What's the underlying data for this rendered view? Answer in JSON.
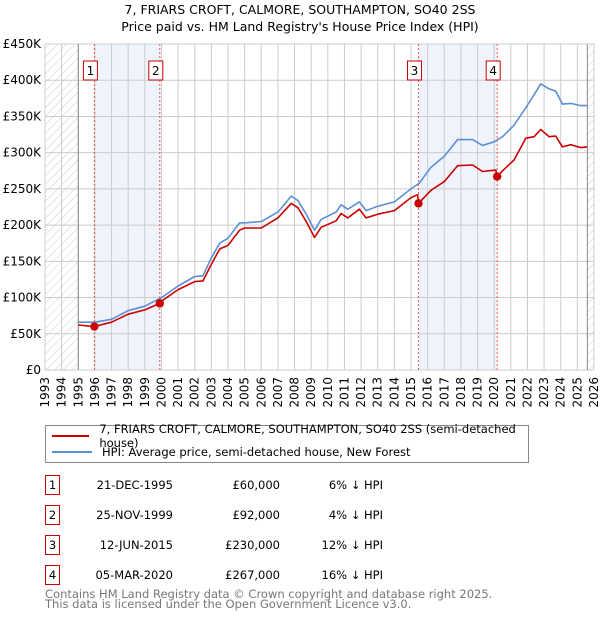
{
  "chart_data": {
    "type": "line",
    "title": "7, FRIARS CROFT, CALMORE, SOUTHAMPTON, SO40 2SS",
    "subtitle": "Price paid vs. HM Land Registry's House Price Index (HPI)",
    "xlim": [
      1993,
      2026
    ],
    "ylim": [
      0,
      450000
    ],
    "x_ticks": [
      "1993",
      "1994",
      "1995",
      "1996",
      "1997",
      "1998",
      "1999",
      "2000",
      "2001",
      "2002",
      "2003",
      "2004",
      "2005",
      "2006",
      "2007",
      "2008",
      "2009",
      "2010",
      "2011",
      "2012",
      "2013",
      "2014",
      "2015",
      "2016",
      "2017",
      "2018",
      "2019",
      "2020",
      "2021",
      "2022",
      "2023",
      "2024",
      "2025",
      "2026"
    ],
    "y_ticks": [
      {
        "value": 0,
        "label": "£0"
      },
      {
        "value": 50000,
        "label": "£50K"
      },
      {
        "value": 100000,
        "label": "£100K"
      },
      {
        "value": 150000,
        "label": "£150K"
      },
      {
        "value": 200000,
        "label": "£200K"
      },
      {
        "value": 250000,
        "label": "£250K"
      },
      {
        "value": 300000,
        "label": "£300K"
      },
      {
        "value": 350000,
        "label": "£350K"
      },
      {
        "value": 400000,
        "label": "£400K"
      },
      {
        "value": 450000,
        "label": "£450K"
      }
    ],
    "grid": true,
    "data_range": [
      1995,
      2025.6
    ],
    "colors": {
      "property": "#cc0000",
      "hpi": "#5b8fd4",
      "band": "#eef3fc",
      "grid": "#cccccc"
    },
    "series": [
      {
        "name": "7, FRIARS CROFT, CALMORE, SOUTHAMPTON, SO40 2SS (semi-detached house)",
        "color": "#cc0000",
        "points": [
          [
            1995,
            62000
          ],
          [
            1995.97,
            60000
          ],
          [
            1997,
            66000
          ],
          [
            1998,
            77000
          ],
          [
            1999,
            83000
          ],
          [
            1999.9,
            92000
          ],
          [
            2000,
            95000
          ],
          [
            2001,
            111000
          ],
          [
            2002,
            122000
          ],
          [
            2002.5,
            123000
          ],
          [
            2003,
            146000
          ],
          [
            2003.5,
            167000
          ],
          [
            2004,
            172000
          ],
          [
            2004.7,
            193000
          ],
          [
            2005,
            196000
          ],
          [
            2006,
            196000
          ],
          [
            2007,
            210000
          ],
          [
            2007.8,
            230000
          ],
          [
            2008.2,
            224000
          ],
          [
            2008.7,
            205000
          ],
          [
            2009.2,
            183000
          ],
          [
            2009.6,
            197000
          ],
          [
            2010.5,
            206000
          ],
          [
            2010.8,
            216000
          ],
          [
            2011.2,
            210000
          ],
          [
            2011.9,
            222000
          ],
          [
            2012.3,
            210000
          ],
          [
            2013,
            215000
          ],
          [
            2014,
            220000
          ],
          [
            2015,
            238000
          ],
          [
            2015.4,
            242000
          ],
          [
            2015.45,
            230000
          ],
          [
            2016.2,
            248000
          ],
          [
            2017,
            260000
          ],
          [
            2017.8,
            282000
          ],
          [
            2018.7,
            283000
          ],
          [
            2019.3,
            274000
          ],
          [
            2020.1,
            276000
          ],
          [
            2020.18,
            267000
          ],
          [
            2020.5,
            275000
          ],
          [
            2021.2,
            290000
          ],
          [
            2021.9,
            320000
          ],
          [
            2022.4,
            322000
          ],
          [
            2022.8,
            332000
          ],
          [
            2023.3,
            322000
          ],
          [
            2023.7,
            323000
          ],
          [
            2024.1,
            308000
          ],
          [
            2024.6,
            311000
          ],
          [
            2025.2,
            307000
          ],
          [
            2025.6,
            308000
          ]
        ]
      },
      {
        "name": "HPI: Average price, semi-detached house, New Forest",
        "color": "#5b8fd4",
        "points": [
          [
            1995,
            66000
          ],
          [
            1996,
            66000
          ],
          [
            1997,
            70000
          ],
          [
            1998,
            82000
          ],
          [
            1999,
            88000
          ],
          [
            2000,
            100000
          ],
          [
            2001,
            116000
          ],
          [
            2002,
            129000
          ],
          [
            2002.5,
            130000
          ],
          [
            2003,
            155000
          ],
          [
            2003.5,
            175000
          ],
          [
            2004,
            182000
          ],
          [
            2004.7,
            203000
          ],
          [
            2005,
            203000
          ],
          [
            2006,
            205000
          ],
          [
            2007,
            218000
          ],
          [
            2007.8,
            240000
          ],
          [
            2008.2,
            234000
          ],
          [
            2008.7,
            215000
          ],
          [
            2009.2,
            193000
          ],
          [
            2009.6,
            208000
          ],
          [
            2010.5,
            218000
          ],
          [
            2010.8,
            228000
          ],
          [
            2011.2,
            222000
          ],
          [
            2011.9,
            232000
          ],
          [
            2012.3,
            220000
          ],
          [
            2013,
            226000
          ],
          [
            2014,
            232000
          ],
          [
            2015,
            250000
          ],
          [
            2015.5,
            258000
          ],
          [
            2016.2,
            280000
          ],
          [
            2017,
            295000
          ],
          [
            2017.8,
            318000
          ],
          [
            2018.7,
            318000
          ],
          [
            2019.3,
            310000
          ],
          [
            2020,
            315000
          ],
          [
            2020.5,
            322000
          ],
          [
            2021.2,
            338000
          ],
          [
            2021.9,
            362000
          ],
          [
            2022.4,
            380000
          ],
          [
            2022.8,
            395000
          ],
          [
            2023.3,
            388000
          ],
          [
            2023.7,
            385000
          ],
          [
            2024.1,
            367000
          ],
          [
            2024.6,
            368000
          ],
          [
            2025.2,
            365000
          ],
          [
            2025.6,
            365000
          ]
        ]
      }
    ],
    "sales": [
      {
        "label": "1",
        "x": 1995.97,
        "value": 60000,
        "date": "21-DEC-1995",
        "price": "£60,000",
        "diff": "6% ↓ HPI"
      },
      {
        "label": "2",
        "x": 1999.9,
        "value": 92000,
        "date": "25-NOV-1999",
        "price": "£92,000",
        "diff": "4% ↓ HPI"
      },
      {
        "label": "3",
        "x": 2015.45,
        "value": 230000,
        "date": "12-JUN-2015",
        "price": "£230,000",
        "diff": "12% ↓ HPI"
      },
      {
        "label": "4",
        "x": 2020.18,
        "value": 267000,
        "date": "05-MAR-2020",
        "price": "£267,000",
        "diff": "16% ↓ HPI"
      }
    ],
    "legend": {
      "placement": "bottom",
      "entries": [
        "7, FRIARS CROFT, CALMORE, SOUTHAMPTON, SO40 2SS (semi-detached house)",
        "HPI: Average price, semi-detached house, New Forest"
      ]
    }
  },
  "footer": {
    "line1": "Contains HM Land Registry data © Crown copyright and database right 2025.",
    "line2": "This data is licensed under the Open Government Licence v3.0."
  }
}
